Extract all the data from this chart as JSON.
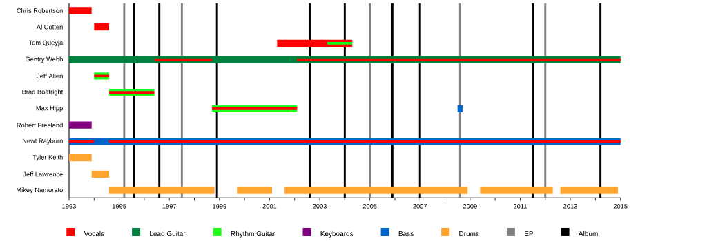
{
  "chart_data": {
    "type": "bar",
    "orientation": "horizontal",
    "categories": [
      "Chris Robertson",
      "Al Cotten",
      "Tom Queyja",
      "Gentry Webb",
      "Jeff Allen",
      "Brad Boatright",
      "Max Hipp",
      "Robert Freeland",
      "Newt Rayburn",
      "Tyler Keith",
      "Jeff Lawrence",
      "Mikey Namorato"
    ],
    "series": [
      {
        "name": "Vocals",
        "color": "#ff0000",
        "base": [
          1993.0,
          1994.0,
          2001.3,
          null,
          null,
          null,
          null,
          null,
          null,
          null,
          null,
          null
        ],
        "values": [
          0.9,
          0.6,
          3.0,
          null,
          null,
          null,
          null,
          null,
          null,
          null,
          null,
          null
        ]
      },
      {
        "name": "Lead Guitar",
        "color": "#007f3f",
        "base": [
          null,
          null,
          null,
          1993.0,
          null,
          null,
          null,
          null,
          null,
          null,
          null,
          null
        ],
        "values": [
          null,
          null,
          null,
          22.0,
          null,
          null,
          null,
          null,
          null,
          null,
          null,
          null
        ]
      },
      {
        "name": "Rhythm Guitar",
        "color": "#1aff1a",
        "base": [
          null,
          null,
          2003.3,
          null,
          1994.0,
          1994.6,
          1998.7,
          null,
          null,
          null,
          null,
          null
        ],
        "values": [
          null,
          null,
          1.0,
          null,
          0.6,
          1.8,
          3.4,
          null,
          null,
          null,
          null,
          null
        ]
      },
      {
        "name": "Keyboards",
        "color": "#800080",
        "base": [
          null,
          null,
          null,
          null,
          null,
          null,
          null,
          1993.0,
          null,
          null,
          null,
          null
        ],
        "values": [
          null,
          null,
          null,
          null,
          null,
          null,
          null,
          0.9,
          null,
          null,
          null,
          null
        ]
      },
      {
        "name": "Bass",
        "color": "#0066cc",
        "base": [
          null,
          null,
          null,
          null,
          null,
          null,
          2008.5,
          null,
          1993.0,
          null,
          null,
          null
        ],
        "values": [
          null,
          null,
          null,
          null,
          null,
          null,
          0.2,
          null,
          22.0,
          null,
          null,
          null
        ]
      },
      {
        "name": "Drums",
        "color": "#ffa431",
        "base": [
          null,
          null,
          null,
          null,
          null,
          null,
          null,
          null,
          null,
          1993.0,
          1993.9,
          1994.6
        ],
        "values": [
          null,
          null,
          null,
          null,
          null,
          null,
          null,
          null,
          null,
          0.9,
          0.7,
          4.2
        ]
      },
      {
        "color": "#ff0000",
        "base": [
          null,
          null,
          null,
          1996.4,
          1994.0,
          1994.6,
          1998.7,
          null,
          1993.0,
          null,
          null,
          null
        ],
        "values": [
          null,
          null,
          null,
          2.3,
          0.6,
          1.8,
          3.4,
          null,
          1.0,
          null,
          null,
          null
        ]
      },
      {
        "color": "#ff0000",
        "base": [
          null,
          null,
          null,
          2002.1,
          null,
          null,
          null,
          null,
          1994.6,
          null,
          null,
          null
        ],
        "values": [
          null,
          null,
          null,
          12.9,
          null,
          null,
          null,
          null,
          20.4,
          null,
          null,
          null
        ]
      },
      {
        "color": "#ffa431",
        "base": [
          null,
          null,
          null,
          null,
          null,
          null,
          null,
          null,
          null,
          null,
          null,
          1999.7
        ],
        "values": [
          null,
          null,
          null,
          null,
          null,
          null,
          null,
          null,
          null,
          null,
          null,
          1.4
        ]
      },
      {
        "color": "#ffa431",
        "base": [
          null,
          null,
          null,
          null,
          null,
          null,
          null,
          null,
          null,
          null,
          null,
          2001.6
        ],
        "values": [
          null,
          null,
          null,
          null,
          null,
          null,
          null,
          null,
          null,
          null,
          null,
          7.3
        ]
      },
      {
        "color": "#ffa431",
        "base": [
          null,
          null,
          null,
          null,
          null,
          null,
          null,
          null,
          null,
          null,
          null,
          2009.4
        ],
        "values": [
          null,
          null,
          null,
          null,
          null,
          null,
          null,
          null,
          null,
          null,
          null,
          2.9
        ]
      },
      {
        "color": "#ffa431",
        "base": [
          null,
          null,
          null,
          null,
          null,
          null,
          null,
          null,
          null,
          null,
          null,
          2012.6
        ],
        "values": [
          null,
          null,
          null,
          null,
          null,
          null,
          null,
          null,
          null,
          null,
          null,
          2.3
        ]
      }
    ],
    "xlim": [
      1993,
      2015
    ],
    "xticks": [
      1993,
      {
        "value": 1994,
        "label": null
      },
      1995,
      {
        "value": 1996,
        "label": null
      },
      1997,
      {
        "value": 1998,
        "label": null
      },
      1999,
      {
        "value": 2000,
        "label": null
      },
      2001,
      {
        "value": 2002,
        "label": null
      },
      2003,
      {
        "value": 2004,
        "label": null
      },
      2005,
      {
        "value": 2006,
        "label": null
      },
      2007,
      {
        "value": 2008,
        "label": null
      },
      2009,
      {
        "value": 2010,
        "label": null
      },
      2011,
      {
        "value": 2012,
        "label": null
      },
      2013,
      {
        "value": 2014,
        "label": null
      },
      2015
    ],
    "ref_lines": [
      {
        "axis": "x",
        "value": 1995.2,
        "color": "#808080",
        "label": "EP"
      },
      {
        "axis": "x",
        "value": 1997.5,
        "color": "#808080"
      },
      {
        "axis": "x",
        "value": 2005.0,
        "color": "#808080"
      },
      {
        "axis": "x",
        "value": 2008.6,
        "color": "#808080"
      },
      {
        "axis": "x",
        "value": 2012.0,
        "color": "#808080"
      },
      {
        "axis": "x",
        "value": 1995.6,
        "color": "#000000",
        "label": "Album"
      },
      {
        "axis": "x",
        "value": 1996.6,
        "color": "#000000"
      },
      {
        "axis": "x",
        "value": 1998.9,
        "color": "#000000"
      },
      {
        "axis": "x",
        "value": 2002.6,
        "color": "#000000"
      },
      {
        "axis": "x",
        "value": 2004.0,
        "color": "#000000"
      },
      {
        "axis": "x",
        "value": 2005.9,
        "color": "#000000"
      },
      {
        "axis": "x",
        "value": 2007.0,
        "color": "#000000"
      },
      {
        "axis": "x",
        "value": 2011.5,
        "color": "#000000"
      },
      {
        "axis": "x",
        "value": 2014.2,
        "color": "#000000"
      }
    ],
    "legend": "bottom"
  }
}
